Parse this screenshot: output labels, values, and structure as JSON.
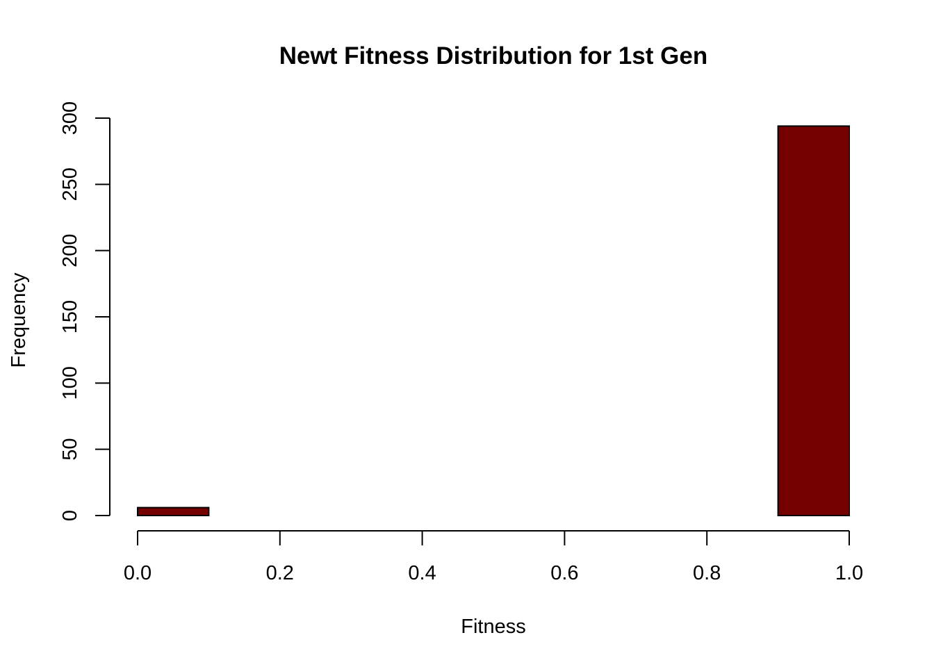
{
  "chart_data": {
    "type": "bar",
    "subtype": "histogram",
    "title": "Newt Fitness Distribution for 1st Gen",
    "xlabel": "Fitness",
    "ylabel": "Frequency",
    "bins": [
      {
        "start": 0.0,
        "end": 0.1,
        "count": 6
      },
      {
        "start": 0.1,
        "end": 0.2,
        "count": 0
      },
      {
        "start": 0.2,
        "end": 0.3,
        "count": 0
      },
      {
        "start": 0.3,
        "end": 0.4,
        "count": 0
      },
      {
        "start": 0.4,
        "end": 0.5,
        "count": 0
      },
      {
        "start": 0.5,
        "end": 0.6,
        "count": 0
      },
      {
        "start": 0.6,
        "end": 0.7,
        "count": 0
      },
      {
        "start": 0.7,
        "end": 0.8,
        "count": 0
      },
      {
        "start": 0.8,
        "end": 0.9,
        "count": 0
      },
      {
        "start": 0.9,
        "end": 1.0,
        "count": 294
      }
    ],
    "xlim": [
      0.0,
      1.0
    ],
    "ylim": [
      0,
      300
    ],
    "xticks": [
      "0.0",
      "0.2",
      "0.4",
      "0.6",
      "0.8",
      "1.0"
    ],
    "yticks": [
      "0",
      "50",
      "100",
      "150",
      "200",
      "250",
      "300"
    ],
    "bar_color": "#750000",
    "grid": false,
    "legend": "none"
  }
}
